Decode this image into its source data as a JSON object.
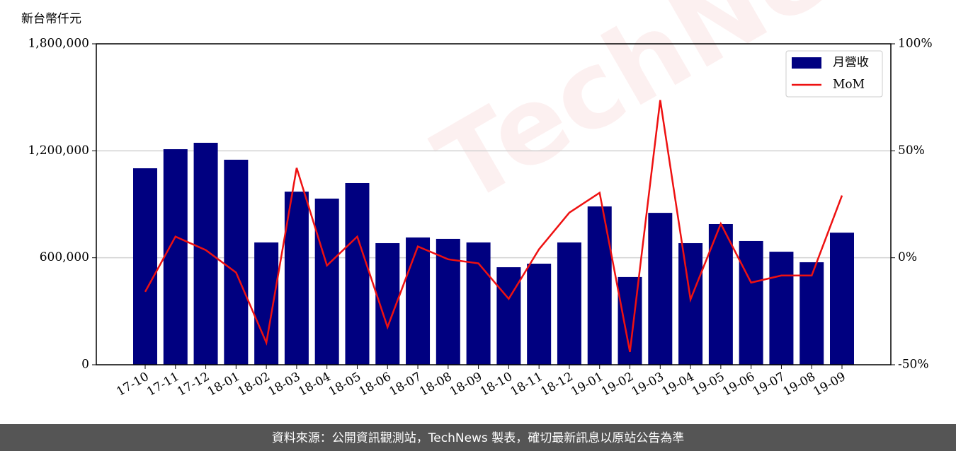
{
  "chart_data": {
    "type": "bar-line",
    "y_label": "新台幣仟元",
    "watermark": "TechNews",
    "categories": [
      "17-10",
      "17-11",
      "17-12",
      "18-01",
      "18-02",
      "18-03",
      "18-04",
      "18-05",
      "18-06",
      "18-07",
      "18-08",
      "18-09",
      "18-10",
      "18-11",
      "18-12",
      "19-01",
      "19-02",
      "19-03",
      "19-04",
      "19-05",
      "19-06",
      "19-07",
      "19-08",
      "19-09"
    ],
    "series": [
      {
        "name": "月營收",
        "type": "bar",
        "color": "#000080",
        "values": [
          1102000,
          1209000,
          1245000,
          1150000,
          686000,
          971000,
          932000,
          1019000,
          682000,
          714000,
          706000,
          686000,
          547000,
          567000,
          686000,
          888000,
          492000,
          852000,
          682000,
          789000,
          694000,
          634000,
          575000,
          741000
        ]
      },
      {
        "name": "MoM",
        "type": "line",
        "axis": "y2",
        "color": "#ee1111",
        "values": [
          -15.9,
          9.9,
          3.6,
          -6.9,
          -39.7,
          42,
          -3.6,
          9.9,
          -32.4,
          5.3,
          -0.7,
          -2.6,
          -19.2,
          4.0,
          21.1,
          30.4,
          -44.0,
          73.7,
          -19.5,
          15.9,
          -11.6,
          -8.3,
          -8.3,
          29.1
        ]
      }
    ],
    "ylim": [
      0,
      1800000
    ],
    "yticks": [
      {
        "value": 0,
        "label": "0"
      },
      {
        "value": 600000,
        "label": "600,000"
      },
      {
        "value": 1200000,
        "label": "1,200,000"
      },
      {
        "value": 1800000,
        "label": "1,800,000"
      }
    ],
    "y2lim": [
      -50,
      100
    ],
    "y2ticks": [
      {
        "value": -50,
        "label": "-50%"
      },
      {
        "value": 0,
        "label": "0%"
      },
      {
        "value": 50,
        "label": "50%"
      },
      {
        "value": 100,
        "label": "100%"
      }
    ],
    "grid": true,
    "legend": "upper right"
  },
  "footer": "資料來源：公開資訊觀測站，TechNews 製表，確切最新訊息以原站公告為準"
}
